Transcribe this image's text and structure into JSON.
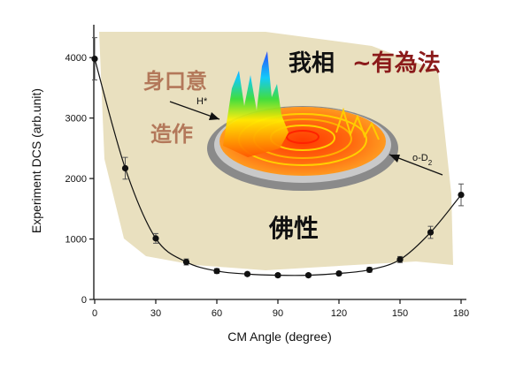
{
  "chart_data": {
    "type": "scatter",
    "xlabel": "CM Angle (degree)",
    "ylabel": "Experiment DCS (arb.unit)",
    "xlim": [
      0,
      180
    ],
    "ylim": [
      0,
      4500
    ],
    "x_ticks": [
      "0",
      "30",
      "60",
      "90",
      "120",
      "150",
      "180"
    ],
    "y_ticks": [
      "0",
      "1000",
      "2000",
      "3000",
      "4000"
    ],
    "grid": false,
    "series": [
      {
        "x": [
          0,
          15,
          30,
          45,
          60,
          75,
          90,
          105,
          120,
          135,
          150,
          165,
          180
        ],
        "y": [
          3980,
          2170,
          1010,
          620,
          470,
          420,
          400,
          400,
          430,
          490,
          660,
          1110,
          1730
        ],
        "err": [
          350,
          180,
          80,
          50,
          40,
          30,
          30,
          30,
          30,
          40,
          50,
          100,
          180
        ]
      }
    ],
    "fit_curve": true,
    "annotations": {
      "top_black": "我相",
      "top_red": "~有為法",
      "left_top": "身口意",
      "left_bottom": "造作",
      "bottom_center": "佛性",
      "h_label": "H*",
      "d2_label": "o-D",
      "d2_subscript": "2"
    }
  },
  "colors": {
    "background_shape": "#e9e0bf",
    "curve": "#111111",
    "red_text": "#8b1a1a",
    "brown_text": "#b3785a",
    "ring": "#7a7a7a"
  }
}
